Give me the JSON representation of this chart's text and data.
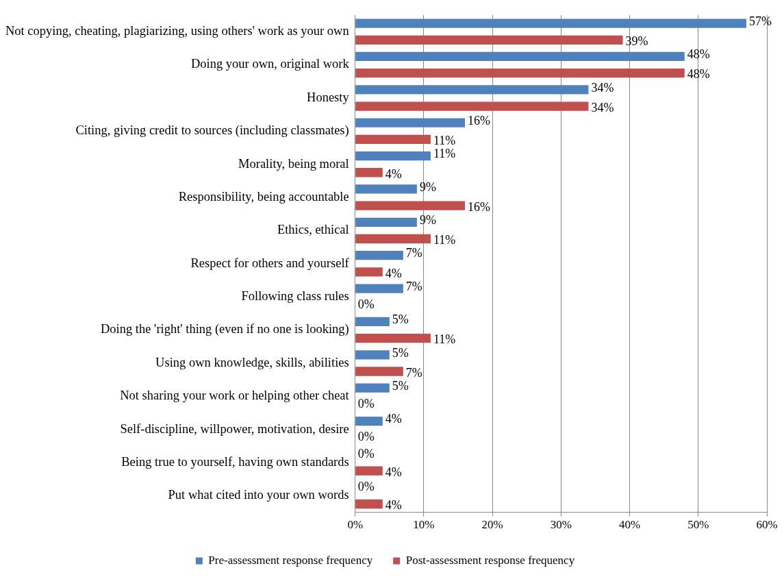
{
  "chart_data": {
    "type": "bar",
    "orientation": "horizontal",
    "categories": [
      "Not copying, cheating, plagiarizing, using others' work as your own",
      "Doing your own, original work",
      "Honesty",
      "Citing, giving credit to sources (including classmates)",
      "Morality, being moral",
      "Responsibility, being accountable",
      "Ethics, ethical",
      "Respect for others and yourself",
      "Following class rules",
      "Doing the 'right' thing (even if no one is looking)",
      "Using own knowledge, skills, abilities",
      "Not sharing your work or helping other cheat",
      "Self-discipline, willpower, motivation, desire",
      "Being true to yourself, having own standards",
      "Put what cited into your own words"
    ],
    "series": [
      {
        "name": "Pre-assessment response frequency",
        "color": "#4f81bd",
        "values": [
          57,
          48,
          34,
          16,
          11,
          9,
          9,
          7,
          7,
          5,
          5,
          5,
          4,
          0,
          0
        ],
        "value_labels": [
          "57%",
          "48%",
          "34%",
          "16%",
          "11%",
          "9%",
          "9%",
          "7%",
          "7%",
          "5%",
          "5%",
          "5%",
          "4%",
          "0%",
          "0%"
        ]
      },
      {
        "name": "Post-assessment response frequency",
        "color": "#c0504d",
        "values": [
          39,
          48,
          34,
          11,
          4,
          16,
          11,
          4,
          0,
          11,
          7,
          0,
          0,
          4,
          4
        ],
        "value_labels": [
          "39%",
          "48%",
          "34%",
          "11%",
          "4%",
          "16%",
          "11%",
          "4%",
          "0%",
          "11%",
          "7%",
          "0%",
          "0%",
          "4%",
          "4%"
        ]
      }
    ],
    "xlim": [
      0,
      60
    ],
    "xticks": [
      {
        "value": 0,
        "label": "0%"
      },
      {
        "value": 10,
        "label": "10%"
      },
      {
        "value": 20,
        "label": "20%"
      },
      {
        "value": 30,
        "label": "30%"
      },
      {
        "value": 40,
        "label": "40%"
      },
      {
        "value": 50,
        "label": "50%"
      },
      {
        "value": 60,
        "label": "60%"
      }
    ],
    "grid": "x",
    "legend": "bottom"
  }
}
